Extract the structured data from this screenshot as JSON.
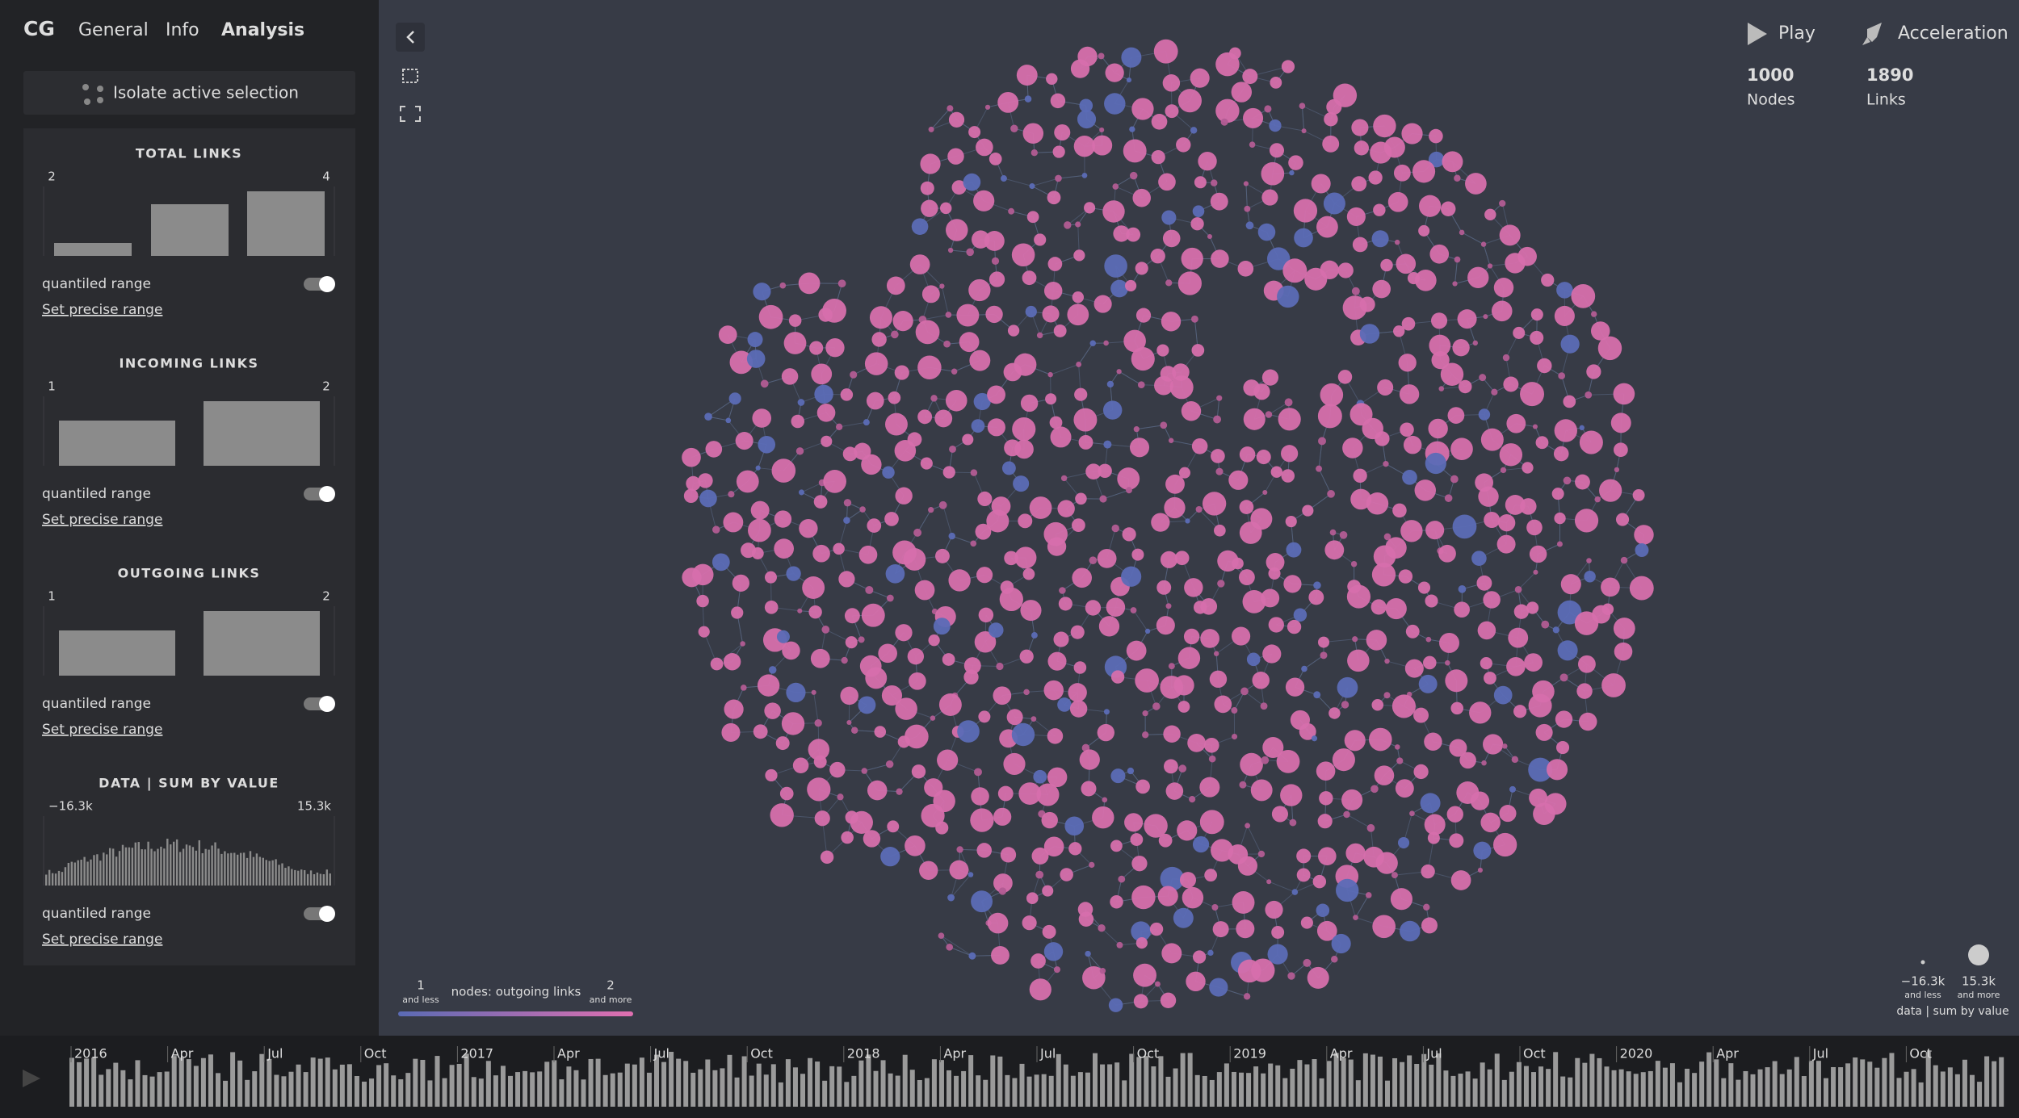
{
  "nav": {
    "logo": "CG",
    "tabs": [
      "General",
      "Info",
      "Analysis"
    ]
  },
  "isolate_button": "Isolate active selection",
  "panels": [
    {
      "title": "TOTAL LINKS",
      "min": 2,
      "max": 4,
      "toggle": "quantiled range",
      "link": "Set precise range"
    },
    {
      "title": "INCOMING LINKS",
      "min": 1,
      "max": 2,
      "toggle": "quantiled range",
      "link": "Set precise range"
    },
    {
      "title": "OUTGOING LINKS",
      "min": 1,
      "max": 2,
      "toggle": "quantiled range",
      "link": "Set precise range"
    },
    {
      "title": "DATA | SUM BY VALUE",
      "min": "−16.3k",
      "max": "15.3k",
      "toggle": "quantiled range",
      "link": "Set precise range"
    }
  ],
  "top_right": {
    "play": "Play",
    "acceleration": "Acceleration",
    "stats": [
      {
        "value": 1000,
        "label": "Nodes"
      },
      {
        "value": 1890,
        "label": "Links"
      }
    ]
  },
  "color_legend": {
    "min": 1,
    "min_note": "and less",
    "title": "nodes: outgoing links",
    "max": 2,
    "max_note": "and more"
  },
  "size_legend": {
    "min": "−16.3k",
    "min_note": "and less",
    "max": "15.3k",
    "max_note": "and more",
    "title": "data | sum by value"
  },
  "timeline": {
    "labels": [
      "2016",
      "Apr",
      "Jul",
      "Oct",
      "2017",
      "Apr",
      "Jul",
      "Oct",
      "2018",
      "Apr",
      "Jul",
      "Oct",
      "2019",
      "Apr",
      "Jul",
      "Oct",
      "2020",
      "Apr",
      "Jul",
      "Oct"
    ]
  }
}
